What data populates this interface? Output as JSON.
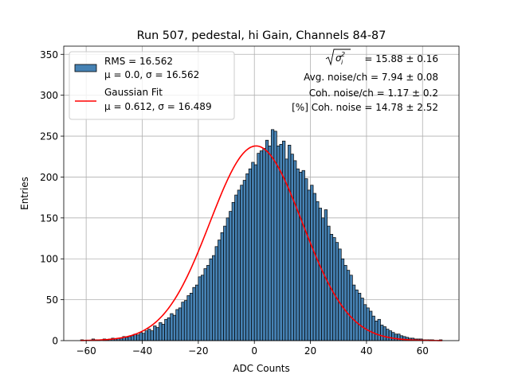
{
  "chart_data": {
    "type": "bar",
    "title": "Run 507, pedestal, hi Gain, Channels 84-87",
    "xlabel": "ADC Counts",
    "ylabel": "Entries",
    "xlim": [
      -68,
      73
    ],
    "ylim": [
      0,
      360
    ],
    "grid": true,
    "x_ticks": [
      -60,
      -40,
      -20,
      0,
      20,
      40,
      60
    ],
    "x_tick_labels": [
      "−60",
      "−40",
      "−20",
      "0",
      "20",
      "40",
      "60"
    ],
    "y_ticks": [
      0,
      50,
      100,
      150,
      200,
      250,
      300,
      350
    ],
    "y_tick_labels": [
      "0",
      "50",
      "100",
      "150",
      "200",
      "250",
      "300",
      "350"
    ],
    "histogram": {
      "name": "RMS = 16.562",
      "mean_sigma_label": "μ = 0.0, σ = 16.562",
      "color": "#4682b4",
      "edge_color": "#000000",
      "bin_start": -62,
      "bin_width": 1,
      "counts": [
        1,
        0,
        0,
        0,
        2,
        1,
        1,
        0,
        2,
        1,
        2,
        3,
        2,
        3,
        3,
        5,
        4,
        5,
        6,
        8,
        7,
        10,
        9,
        12,
        14,
        12,
        18,
        16,
        22,
        20,
        26,
        28,
        33,
        31,
        38,
        40,
        47,
        49,
        55,
        58,
        65,
        68,
        78,
        80,
        88,
        92,
        100,
        104,
        115,
        123,
        132,
        140,
        150,
        158,
        169,
        178,
        184,
        190,
        196,
        204,
        210,
        218,
        215,
        229,
        232,
        235,
        245,
        238,
        258,
        256,
        238,
        240,
        244,
        222,
        239,
        228,
        220,
        210,
        206,
        208,
        198,
        184,
        190,
        180,
        170,
        162,
        150,
        160,
        140,
        130,
        126,
        120,
        112,
        100,
        92,
        86,
        80,
        68,
        62,
        58,
        52,
        44,
        40,
        36,
        30,
        24,
        26,
        19,
        17,
        14,
        12,
        10,
        8,
        8,
        6,
        5,
        4,
        3,
        3,
        2,
        2,
        2,
        1,
        1,
        1,
        1,
        0,
        0,
        1,
        0
      ]
    },
    "fit": {
      "name": "Gaussian Fit",
      "mean_sigma_label": "μ = 0.612, σ = 16.489",
      "mu": 0.612,
      "sigma": 16.489,
      "amplitude": 238,
      "x_range": [
        -62,
        67
      ],
      "color": "#ff0000"
    },
    "legend_position": "upper-left",
    "annotations": {
      "sigma_value": "= 15.88 ± 0.16",
      "avg_noise": "Avg. noise/ch = 7.94 ± 0.08",
      "coh_noise": "Coh. noise/ch = 1.17 ± 0.2",
      "pct_coh_noise": "[%] Coh. noise = 14.78 ± 2.52"
    }
  }
}
